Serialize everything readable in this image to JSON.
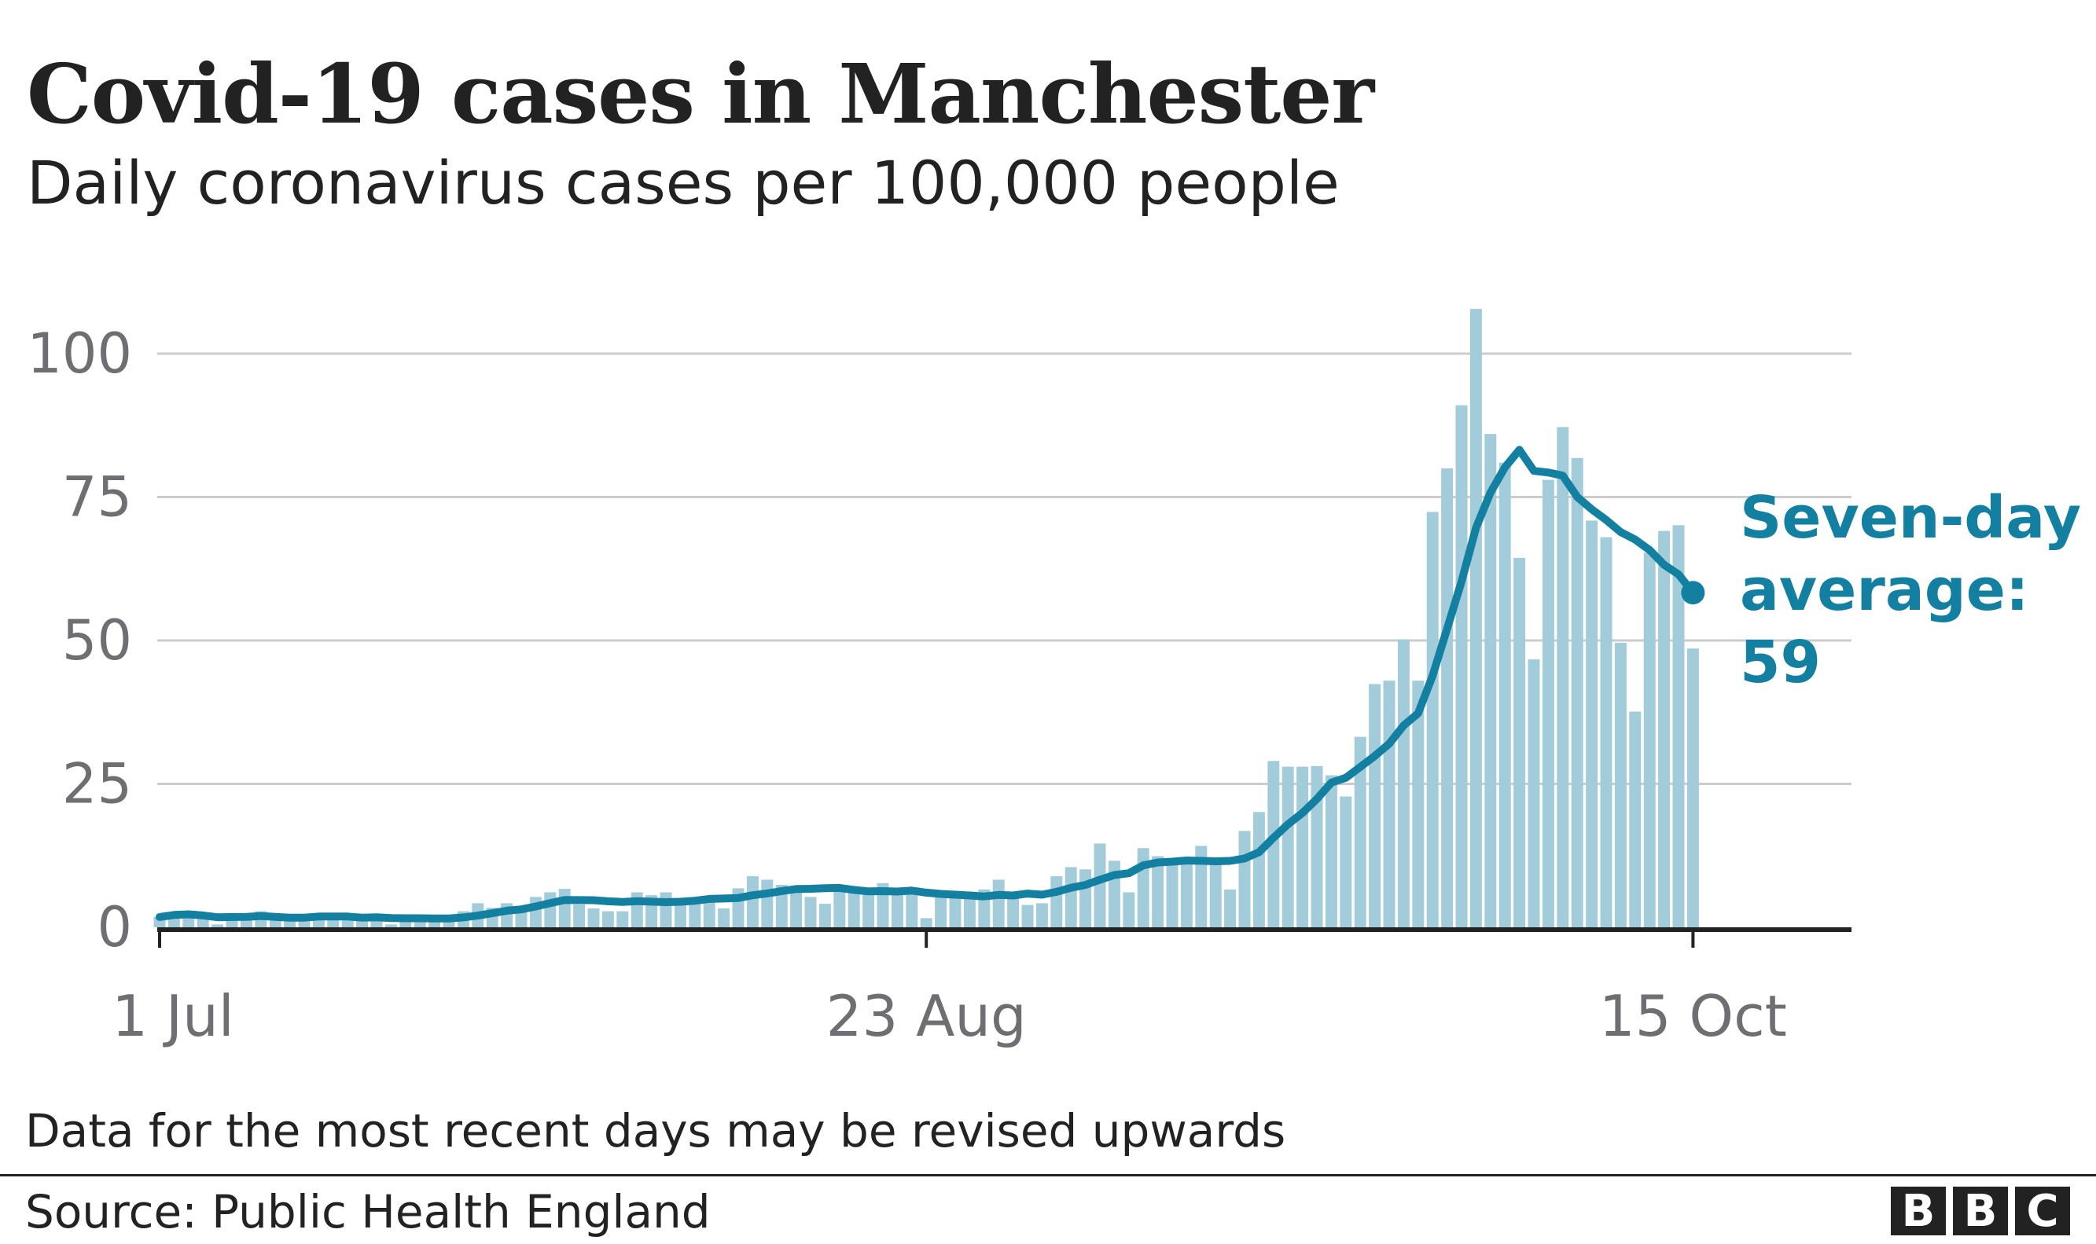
{
  "chart_data": {
    "type": "bar",
    "title": "Covid-19 cases in Manchester",
    "subtitle": "Daily coronavirus cases per 100,000 people",
    "x_start": "1 Jul",
    "x_end": "15 Oct",
    "x_ticks": [
      {
        "day": 0,
        "label": "1 Jul"
      },
      {
        "day": 53,
        "label": "23 Aug"
      },
      {
        "day": 106,
        "label": "15 Oct"
      }
    ],
    "y_ticks": [
      0,
      25,
      50,
      75,
      100
    ],
    "ylim": [
      0,
      110
    ],
    "grid": true,
    "series": [
      {
        "type": "bar",
        "values": [
          1.8,
          2.5,
          2.5,
          1.5,
          0.5,
          2,
          2,
          2.8,
          1.5,
          1.5,
          1.5,
          1.8,
          2,
          2,
          1.5,
          2,
          0.5,
          1.2,
          1.8,
          1.8,
          2,
          2.8,
          4.2,
          3.4,
          4.2,
          3.5,
          5.3,
          6.1,
          6.7,
          4,
          3.3,
          2.8,
          2.8,
          6.1,
          5.6,
          6.1,
          4.5,
          4.5,
          5,
          3.3,
          6.8,
          8.9,
          8.3,
          7.4,
          7,
          5.3,
          4.1,
          7,
          6.5,
          6.5,
          7.7,
          6.5,
          6.5,
          1.6,
          5.5,
          5.5,
          5.5,
          6.6,
          8.3,
          5.8,
          3.9,
          4.2,
          8.9,
          10.5,
          10.1,
          14.6,
          11.6,
          6.1,
          13.8,
          12.4,
          11.5,
          11.5,
          14.2,
          11,
          6.6,
          16.8,
          20.1,
          29,
          28,
          28,
          28.1,
          26.5,
          22.8,
          33.2,
          42.4,
          43,
          50.2,
          43,
          72.4,
          80,
          91,
          107.8,
          86,
          81,
          64.4,
          46.7,
          78,
          87.2,
          81.8,
          70.9,
          68,
          49.6,
          37.6,
          65.3,
          69.1,
          70.1,
          48.6
        ]
      },
      {
        "type": "line",
        "name": "Seven-day average",
        "window_days": 7
      }
    ],
    "annotation": {
      "line1": "Seven-day",
      "line2": "average:",
      "line3": "59"
    },
    "colors": {
      "bars": "#A3CCDA",
      "line": "#1380A1",
      "grid": "#CCCCCC",
      "axis": "#222222",
      "tick_text": "#6E6E73"
    },
    "note": "Data for the most recent days may be revised upwards",
    "source": "Source: Public Health England"
  },
  "logo": {
    "letters": [
      "B",
      "B",
      "C"
    ]
  }
}
